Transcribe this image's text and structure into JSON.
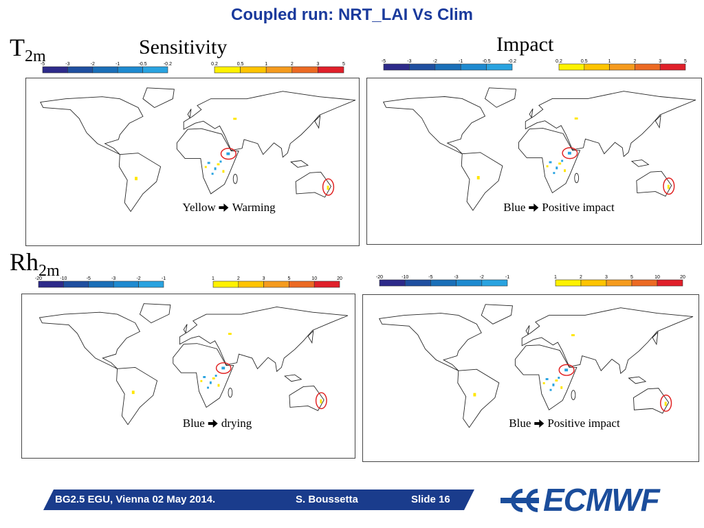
{
  "header": {
    "title": "Coupled run: NRT_LAI Vs Clim"
  },
  "rows": [
    {
      "variable": "T",
      "subscript": "2m",
      "panels": [
        {
          "heading": "Sensitivity",
          "negative_scale": [
            "-5",
            "-3",
            "-2",
            "-1",
            "-0.5",
            "-0.2"
          ],
          "positive_scale": [
            "0.2",
            "0.5",
            "1",
            "2",
            "3",
            "5"
          ],
          "note_color": "Yellow",
          "note_meaning": "Warming"
        },
        {
          "heading": "Impact",
          "negative_scale": [
            "-5",
            "-3",
            "-2",
            "-1",
            "-0.5",
            "-0.2"
          ],
          "positive_scale": [
            "0.2",
            "0.5",
            "1",
            "2",
            "3",
            "5"
          ],
          "note_color": "Blue",
          "note_meaning": "Positive impact"
        }
      ]
    },
    {
      "variable": "Rh",
      "subscript": "2m",
      "panels": [
        {
          "negative_scale": [
            "-20",
            "-10",
            "-5",
            "-3",
            "-2",
            "-1"
          ],
          "positive_scale": [
            "1",
            "2",
            "3",
            "5",
            "10",
            "20"
          ],
          "note_color": "Blue",
          "note_meaning": "drying"
        },
        {
          "negative_scale": [
            "-20",
            "-10",
            "-5",
            "-3",
            "-2",
            "-1"
          ],
          "positive_scale": [
            "1",
            "2",
            "3",
            "5",
            "10",
            "20"
          ],
          "note_color": "Blue",
          "note_meaning": "Positive impact"
        }
      ]
    }
  ],
  "footer": {
    "event": "BG2.5  EGU, Vienna 02 May 2014.",
    "author": "S. Boussetta",
    "slide": "Slide 16",
    "logo": "ECMWF"
  }
}
